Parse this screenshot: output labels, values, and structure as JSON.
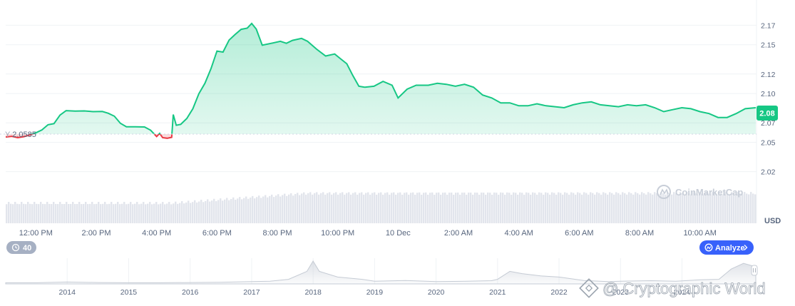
{
  "chart_data": {
    "type": "line",
    "currency_label": "USD",
    "current_price": "2.08",
    "reference_price": "2.0585",
    "y_ticks": [
      "2.17",
      "2.15",
      "2.12",
      "2.10",
      "2.07",
      "2.05",
      "2.02"
    ],
    "ylim": [
      2.0,
      2.19
    ],
    "x_ticks": [
      {
        "label": "12:00 PM",
        "hour": 12
      },
      {
        "label": "2:00 PM",
        "hour": 14
      },
      {
        "label": "4:00 PM",
        "hour": 16
      },
      {
        "label": "6:00 PM",
        "hour": 18
      },
      {
        "label": "8:00 PM",
        "hour": 20
      },
      {
        "label": "10:00 PM",
        "hour": 22
      },
      {
        "label": "10 Dec",
        "hour": 24
      },
      {
        "label": "2:00 AM",
        "hour": 26
      },
      {
        "label": "4:00 AM",
        "hour": 28
      },
      {
        "label": "6:00 AM",
        "hour": 30
      },
      {
        "label": "8:00 AM",
        "hour": 32
      },
      {
        "label": "10:00 AM",
        "hour": 34
      }
    ],
    "xlim": [
      11.0,
      35.85
    ],
    "series": [
      {
        "points": [
          [
            11.0,
            2.0555
          ],
          [
            11.2,
            2.0562
          ],
          [
            11.4,
            2.0548
          ],
          [
            11.6,
            2.0558
          ],
          [
            11.8,
            2.0575
          ],
          [
            12.0,
            2.0598
          ],
          [
            12.2,
            2.0628
          ],
          [
            12.4,
            2.068
          ],
          [
            12.6,
            2.0692
          ],
          [
            12.8,
            2.078
          ],
          [
            13.0,
            2.0825
          ],
          [
            13.3,
            2.082
          ],
          [
            13.6,
            2.0822
          ],
          [
            13.9,
            2.0815
          ],
          [
            14.2,
            2.0816
          ],
          [
            14.4,
            2.0798
          ],
          [
            14.6,
            2.0768
          ],
          [
            14.8,
            2.0695
          ],
          [
            15.0,
            2.066
          ],
          [
            15.3,
            2.066
          ],
          [
            15.6,
            2.0658
          ],
          [
            15.8,
            2.0625
          ],
          [
            16.0,
            2.056
          ],
          [
            16.1,
            2.0592
          ],
          [
            16.2,
            2.0548
          ],
          [
            16.35,
            2.0542
          ],
          [
            16.5,
            2.0552
          ],
          [
            16.55,
            2.0785
          ],
          [
            16.65,
            2.0675
          ],
          [
            16.8,
            2.0685
          ],
          [
            17.0,
            2.0745
          ],
          [
            17.2,
            2.0845
          ],
          [
            17.4,
            2.0998
          ],
          [
            17.6,
            2.1105
          ],
          [
            17.8,
            2.1255
          ],
          [
            18.0,
            2.1435
          ],
          [
            18.2,
            2.1425
          ],
          [
            18.4,
            2.1548
          ],
          [
            18.6,
            2.1605
          ],
          [
            18.8,
            2.1658
          ],
          [
            19.0,
            2.167
          ],
          [
            19.15,
            2.1718
          ],
          [
            19.3,
            2.166
          ],
          [
            19.5,
            2.1495
          ],
          [
            19.8,
            2.1515
          ],
          [
            20.1,
            2.1535
          ],
          [
            20.3,
            2.1515
          ],
          [
            20.5,
            2.1545
          ],
          [
            20.8,
            2.1565
          ],
          [
            21.0,
            2.1535
          ],
          [
            21.3,
            2.1455
          ],
          [
            21.6,
            2.1385
          ],
          [
            21.9,
            2.1405
          ],
          [
            22.1,
            2.1355
          ],
          [
            22.3,
            2.1305
          ],
          [
            22.5,
            2.1185
          ],
          [
            22.7,
            2.1075
          ],
          [
            22.9,
            2.1065
          ],
          [
            23.2,
            2.1075
          ],
          [
            23.5,
            2.1125
          ],
          [
            23.8,
            2.1085
          ],
          [
            24.0,
            2.0955
          ],
          [
            24.3,
            2.1045
          ],
          [
            24.6,
            2.1085
          ],
          [
            25.0,
            2.1085
          ],
          [
            25.3,
            2.1105
          ],
          [
            25.6,
            2.1095
          ],
          [
            25.9,
            2.1075
          ],
          [
            26.2,
            2.1095
          ],
          [
            26.5,
            2.1065
          ],
          [
            26.8,
            2.0985
          ],
          [
            27.1,
            2.0955
          ],
          [
            27.4,
            2.0905
          ],
          [
            27.7,
            2.0905
          ],
          [
            28.0,
            2.0875
          ],
          [
            28.3,
            2.0875
          ],
          [
            28.6,
            2.0895
          ],
          [
            28.9,
            2.0875
          ],
          [
            29.2,
            2.0865
          ],
          [
            29.5,
            2.0855
          ],
          [
            29.8,
            2.0885
          ],
          [
            30.1,
            2.0905
          ],
          [
            30.4,
            2.0915
          ],
          [
            30.7,
            2.0885
          ],
          [
            31.0,
            2.0875
          ],
          [
            31.3,
            2.0865
          ],
          [
            31.6,
            2.0885
          ],
          [
            31.9,
            2.0875
          ],
          [
            32.2,
            2.0885
          ],
          [
            32.5,
            2.0855
          ],
          [
            32.8,
            2.0815
          ],
          [
            33.1,
            2.0835
          ],
          [
            33.4,
            2.0855
          ],
          [
            33.7,
            2.0845
          ],
          [
            34.0,
            2.0815
          ],
          [
            34.3,
            2.0795
          ],
          [
            34.6,
            2.0755
          ],
          [
            34.9,
            2.0755
          ],
          [
            35.2,
            2.0795
          ],
          [
            35.5,
            2.0845
          ],
          [
            35.85,
            2.0855
          ]
        ]
      }
    ],
    "colors": {
      "up_line": "#16c784",
      "down_line": "#ea3943",
      "badge": "#16c784",
      "grid": "#eff2f5",
      "volume": "#e2e5ec"
    }
  },
  "watermark": "CoinMarketCap",
  "events_badge": {
    "icon": "clock-icon",
    "count": "40"
  },
  "analyze_button": {
    "label": "Analyze",
    "icon": "analyze-icon"
  },
  "overview": {
    "year_ticks": [
      "2014",
      "2015",
      "2016",
      "2017",
      "2018",
      "2019",
      "2020",
      "2021",
      "2022",
      "2023",
      "2024"
    ],
    "series": [
      [
        2013.0,
        0.05
      ],
      [
        2013.5,
        0.05
      ],
      [
        2014.0,
        0.08
      ],
      [
        2014.5,
        0.06
      ],
      [
        2015.0,
        0.05
      ],
      [
        2015.5,
        0.05
      ],
      [
        2016.0,
        0.06
      ],
      [
        2016.5,
        0.07
      ],
      [
        2017.0,
        0.1
      ],
      [
        2017.3,
        0.12
      ],
      [
        2017.6,
        0.2
      ],
      [
        2017.9,
        0.55
      ],
      [
        2018.0,
        1.0
      ],
      [
        2018.1,
        0.55
      ],
      [
        2018.4,
        0.3
      ],
      [
        2018.8,
        0.2
      ],
      [
        2019.0,
        0.12
      ],
      [
        2019.5,
        0.15
      ],
      [
        2020.0,
        0.1
      ],
      [
        2020.5,
        0.12
      ],
      [
        2020.9,
        0.14
      ],
      [
        2021.0,
        0.2
      ],
      [
        2021.2,
        0.55
      ],
      [
        2021.4,
        0.45
      ],
      [
        2021.7,
        0.35
      ],
      [
        2022.0,
        0.3
      ],
      [
        2022.4,
        0.15
      ],
      [
        2022.8,
        0.1
      ],
      [
        2023.0,
        0.12
      ],
      [
        2023.5,
        0.14
      ],
      [
        2023.9,
        0.12
      ],
      [
        2024.3,
        0.18
      ],
      [
        2024.6,
        0.2
      ],
      [
        2024.8,
        0.65
      ],
      [
        2025.0,
        0.9
      ],
      [
        2025.2,
        0.75
      ]
    ],
    "x_range": [
      2013.0,
      2025.2
    ]
  },
  "credit": "@ Cryptographic World"
}
